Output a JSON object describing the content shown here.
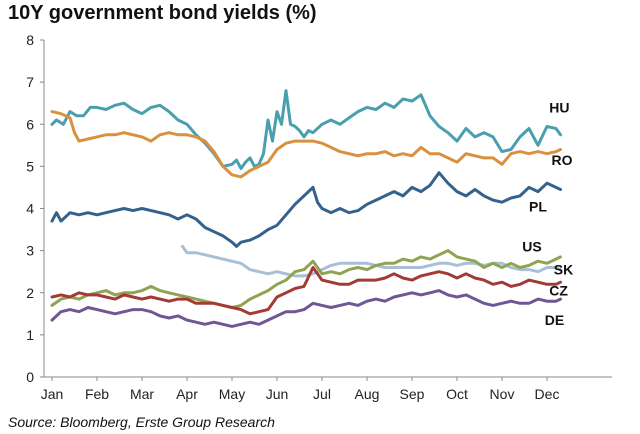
{
  "chart_data": {
    "type": "line",
    "title": "10Y government bond yields (%)",
    "source": "Source: Bloomberg, Erste Group Research",
    "xlabel": "",
    "ylabel": "",
    "ylim": [
      0,
      8
    ],
    "yticks": [
      0,
      1,
      2,
      3,
      4,
      5,
      6,
      7,
      8
    ],
    "xlim": [
      0,
      11.35
    ],
    "categories": [
      "Jan",
      "Feb",
      "Mar",
      "Apr",
      "May",
      "Jun",
      "Jul",
      "Aug",
      "Sep",
      "Oct",
      "Nov",
      "Dec"
    ],
    "grid": false,
    "series": [
      {
        "name": "HU",
        "color": "#4a9fae",
        "x": [
          0,
          0.1,
          0.25,
          0.4,
          0.55,
          0.7,
          0.85,
          1.0,
          1.2,
          1.4,
          1.6,
          1.8,
          2.0,
          2.2,
          2.4,
          2.6,
          2.8,
          3.0,
          3.2,
          3.4,
          3.6,
          3.8,
          4.0,
          4.1,
          4.2,
          4.3,
          4.4,
          4.5,
          4.6,
          4.7,
          4.8,
          4.9,
          5.0,
          5.1,
          5.2,
          5.3,
          5.4,
          5.5,
          5.6,
          5.7,
          5.8,
          6.0,
          6.2,
          6.4,
          6.6,
          6.8,
          7.0,
          7.2,
          7.4,
          7.6,
          7.8,
          8.0,
          8.2,
          8.4,
          8.6,
          8.8,
          9.0,
          9.2,
          9.4,
          9.6,
          9.8,
          10.0,
          10.2,
          10.4,
          10.6,
          10.8,
          11.0,
          11.2,
          11.3
        ],
        "values": [
          6.0,
          6.1,
          6.0,
          6.3,
          6.2,
          6.2,
          6.4,
          6.4,
          6.35,
          6.45,
          6.5,
          6.35,
          6.25,
          6.4,
          6.45,
          6.3,
          6.1,
          6.0,
          5.75,
          5.55,
          5.3,
          5.0,
          5.05,
          5.15,
          4.95,
          5.1,
          5.2,
          5.0,
          5.05,
          5.3,
          6.1,
          5.6,
          6.3,
          6.0,
          6.8,
          6.0,
          5.95,
          5.85,
          5.7,
          5.85,
          5.8,
          6.0,
          6.1,
          6.0,
          6.15,
          6.3,
          6.4,
          6.35,
          6.5,
          6.4,
          6.6,
          6.55,
          6.7,
          6.2,
          5.95,
          5.8,
          5.6,
          5.9,
          5.7,
          5.8,
          5.7,
          5.35,
          5.4,
          5.7,
          5.9,
          5.5,
          5.95,
          5.9,
          5.75
        ]
      },
      {
        "name": "RO",
        "color": "#d9913e",
        "x": [
          0,
          0.2,
          0.4,
          0.5,
          0.6,
          0.8,
          1.0,
          1.2,
          1.4,
          1.6,
          1.8,
          2.0,
          2.2,
          2.4,
          2.6,
          2.8,
          3.0,
          3.2,
          3.4,
          3.6,
          3.8,
          4.0,
          4.2,
          4.4,
          4.6,
          4.8,
          5.0,
          5.2,
          5.4,
          5.6,
          5.8,
          6.0,
          6.2,
          6.4,
          6.6,
          6.8,
          7.0,
          7.2,
          7.4,
          7.6,
          7.8,
          8.0,
          8.2,
          8.4,
          8.6,
          8.8,
          9.0,
          9.2,
          9.4,
          9.6,
          9.8,
          10.0,
          10.2,
          10.4,
          10.6,
          10.8,
          11.0,
          11.2,
          11.3
        ],
        "values": [
          6.3,
          6.25,
          6.15,
          5.8,
          5.6,
          5.65,
          5.7,
          5.75,
          5.75,
          5.8,
          5.75,
          5.7,
          5.6,
          5.75,
          5.8,
          5.75,
          5.75,
          5.7,
          5.6,
          5.35,
          5.0,
          4.8,
          4.75,
          4.9,
          5.0,
          5.1,
          5.4,
          5.55,
          5.6,
          5.6,
          5.6,
          5.55,
          5.45,
          5.35,
          5.3,
          5.25,
          5.3,
          5.3,
          5.35,
          5.25,
          5.3,
          5.25,
          5.45,
          5.3,
          5.3,
          5.2,
          5.1,
          5.3,
          5.25,
          5.2,
          5.2,
          5.05,
          5.3,
          5.35,
          5.3,
          5.35,
          5.3,
          5.35,
          5.4
        ]
      },
      {
        "name": "PL",
        "color": "#33628d",
        "x": [
          0,
          0.1,
          0.2,
          0.4,
          0.6,
          0.8,
          1.0,
          1.2,
          1.4,
          1.6,
          1.8,
          2.0,
          2.2,
          2.4,
          2.6,
          2.8,
          3.0,
          3.2,
          3.4,
          3.6,
          3.8,
          4.0,
          4.1,
          4.2,
          4.4,
          4.6,
          4.8,
          5.0,
          5.2,
          5.4,
          5.6,
          5.8,
          5.9,
          6.0,
          6.2,
          6.4,
          6.6,
          6.8,
          7.0,
          7.2,
          7.4,
          7.6,
          7.8,
          8.0,
          8.2,
          8.4,
          8.6,
          8.8,
          9.0,
          9.2,
          9.4,
          9.6,
          9.8,
          10.0,
          10.2,
          10.4,
          10.6,
          10.8,
          11.0,
          11.2,
          11.3
        ],
        "values": [
          3.7,
          3.9,
          3.7,
          3.9,
          3.85,
          3.9,
          3.85,
          3.9,
          3.95,
          4.0,
          3.95,
          4.0,
          3.95,
          3.9,
          3.85,
          3.75,
          3.85,
          3.75,
          3.55,
          3.45,
          3.35,
          3.2,
          3.1,
          3.2,
          3.25,
          3.35,
          3.5,
          3.6,
          3.85,
          4.1,
          4.3,
          4.5,
          4.15,
          4.0,
          3.9,
          4.0,
          3.9,
          3.95,
          4.1,
          4.2,
          4.3,
          4.4,
          4.3,
          4.5,
          4.4,
          4.55,
          4.85,
          4.6,
          4.4,
          4.3,
          4.45,
          4.3,
          4.2,
          4.15,
          4.25,
          4.3,
          4.5,
          4.4,
          4.6,
          4.5,
          4.45
        ]
      },
      {
        "name": "SK",
        "color": "#a9bfd6",
        "x": [
          2.9,
          3.0,
          3.2,
          3.4,
          3.6,
          3.8,
          4.0,
          4.2,
          4.4,
          4.6,
          4.8,
          5.0,
          5.2,
          5.4,
          5.6,
          5.8,
          6.0,
          6.2,
          6.4,
          6.6,
          6.8,
          7.0,
          7.2,
          7.4,
          7.6,
          7.8,
          8.0,
          8.2,
          8.4,
          8.6,
          8.8,
          9.0,
          9.2,
          9.4,
          9.6,
          9.8,
          10.0,
          10.2,
          10.4,
          10.6,
          10.8,
          11.0,
          11.2,
          11.3
        ],
        "values": [
          3.1,
          2.95,
          2.95,
          2.9,
          2.85,
          2.8,
          2.75,
          2.7,
          2.55,
          2.5,
          2.45,
          2.5,
          2.45,
          2.4,
          2.4,
          2.45,
          2.55,
          2.65,
          2.7,
          2.7,
          2.7,
          2.7,
          2.65,
          2.6,
          2.6,
          2.6,
          2.6,
          2.6,
          2.65,
          2.7,
          2.7,
          2.65,
          2.7,
          2.7,
          2.65,
          2.7,
          2.7,
          2.6,
          2.55,
          2.55,
          2.5,
          2.6,
          2.6,
          2.55
        ]
      },
      {
        "name": "US",
        "color": "#8fa450",
        "x": [
          0,
          0.2,
          0.4,
          0.6,
          0.8,
          1.0,
          1.2,
          1.4,
          1.6,
          1.8,
          2.0,
          2.2,
          2.4,
          2.6,
          2.8,
          3.0,
          3.2,
          3.4,
          3.6,
          3.8,
          4.0,
          4.2,
          4.4,
          4.6,
          4.8,
          5.0,
          5.2,
          5.4,
          5.6,
          5.8,
          6.0,
          6.2,
          6.4,
          6.6,
          6.8,
          7.0,
          7.2,
          7.4,
          7.6,
          7.8,
          8.0,
          8.2,
          8.4,
          8.6,
          8.8,
          9.0,
          9.2,
          9.4,
          9.6,
          9.8,
          10.0,
          10.2,
          10.4,
          10.6,
          10.8,
          11.0,
          11.2,
          11.3
        ],
        "values": [
          1.7,
          1.85,
          1.9,
          1.85,
          1.95,
          2.0,
          2.05,
          1.95,
          2.0,
          2.0,
          2.05,
          2.15,
          2.05,
          2.0,
          1.95,
          1.9,
          1.85,
          1.8,
          1.75,
          1.7,
          1.65,
          1.7,
          1.85,
          1.95,
          2.05,
          2.2,
          2.3,
          2.5,
          2.55,
          2.75,
          2.45,
          2.5,
          2.45,
          2.55,
          2.6,
          2.55,
          2.65,
          2.7,
          2.7,
          2.8,
          2.75,
          2.85,
          2.8,
          2.9,
          3.0,
          2.85,
          2.8,
          2.75,
          2.6,
          2.7,
          2.6,
          2.7,
          2.6,
          2.65,
          2.75,
          2.7,
          2.8,
          2.85
        ]
      },
      {
        "name": "CZ",
        "color": "#a33a36",
        "x": [
          0,
          0.2,
          0.4,
          0.6,
          0.8,
          1.0,
          1.2,
          1.4,
          1.6,
          1.8,
          2.0,
          2.2,
          2.4,
          2.6,
          2.8,
          3.0,
          3.2,
          3.4,
          3.6,
          3.8,
          4.0,
          4.2,
          4.4,
          4.6,
          4.8,
          5.0,
          5.2,
          5.4,
          5.6,
          5.8,
          6.0,
          6.2,
          6.4,
          6.6,
          6.8,
          7.0,
          7.2,
          7.4,
          7.6,
          7.8,
          8.0,
          8.2,
          8.4,
          8.6,
          8.8,
          9.0,
          9.2,
          9.4,
          9.6,
          9.8,
          10.0,
          10.2,
          10.4,
          10.6,
          10.8,
          11.0,
          11.2,
          11.3
        ],
        "values": [
          1.9,
          1.95,
          1.9,
          2.0,
          1.95,
          1.95,
          1.9,
          1.85,
          1.95,
          1.9,
          1.85,
          1.9,
          1.85,
          1.8,
          1.85,
          1.85,
          1.75,
          1.75,
          1.75,
          1.7,
          1.65,
          1.6,
          1.5,
          1.55,
          1.6,
          1.9,
          2.0,
          2.1,
          2.15,
          2.6,
          2.3,
          2.25,
          2.2,
          2.2,
          2.3,
          2.3,
          2.3,
          2.35,
          2.45,
          2.35,
          2.3,
          2.4,
          2.45,
          2.5,
          2.45,
          2.35,
          2.45,
          2.35,
          2.3,
          2.2,
          2.25,
          2.15,
          2.2,
          2.3,
          2.25,
          2.2,
          2.2,
          2.25
        ]
      },
      {
        "name": "DE",
        "color": "#6e5793",
        "x": [
          0,
          0.2,
          0.4,
          0.6,
          0.8,
          1.0,
          1.2,
          1.4,
          1.6,
          1.8,
          2.0,
          2.2,
          2.4,
          2.6,
          2.8,
          3.0,
          3.2,
          3.4,
          3.6,
          3.8,
          4.0,
          4.2,
          4.4,
          4.6,
          4.8,
          5.0,
          5.2,
          5.4,
          5.6,
          5.8,
          6.0,
          6.2,
          6.4,
          6.6,
          6.8,
          7.0,
          7.2,
          7.4,
          7.6,
          7.8,
          8.0,
          8.2,
          8.4,
          8.6,
          8.8,
          9.0,
          9.2,
          9.4,
          9.6,
          9.8,
          10.0,
          10.2,
          10.4,
          10.6,
          10.8,
          11.0,
          11.2,
          11.3
        ],
        "values": [
          1.35,
          1.55,
          1.6,
          1.55,
          1.65,
          1.6,
          1.55,
          1.5,
          1.55,
          1.6,
          1.6,
          1.55,
          1.45,
          1.4,
          1.45,
          1.35,
          1.3,
          1.25,
          1.3,
          1.25,
          1.2,
          1.25,
          1.3,
          1.25,
          1.35,
          1.45,
          1.55,
          1.55,
          1.6,
          1.75,
          1.7,
          1.65,
          1.7,
          1.75,
          1.7,
          1.8,
          1.85,
          1.8,
          1.9,
          1.95,
          2.0,
          1.95,
          2.0,
          2.05,
          1.95,
          1.9,
          1.95,
          1.85,
          1.75,
          1.7,
          1.75,
          1.8,
          1.75,
          1.75,
          1.85,
          1.8,
          1.8,
          1.85
        ]
      }
    ],
    "series_labels": [
      {
        "name": "HU",
        "at": [
          11.05,
          6.4
        ]
      },
      {
        "name": "RO",
        "at": [
          11.1,
          5.15
        ]
      },
      {
        "name": "PL",
        "at": [
          10.6,
          4.05
        ]
      },
      {
        "name": "US",
        "at": [
          10.45,
          3.1
        ]
      },
      {
        "name": "SK",
        "at": [
          11.15,
          2.55
        ]
      },
      {
        "name": "CZ",
        "at": [
          11.05,
          2.05
        ]
      },
      {
        "name": "DE",
        "at": [
          10.95,
          1.35
        ]
      }
    ]
  }
}
